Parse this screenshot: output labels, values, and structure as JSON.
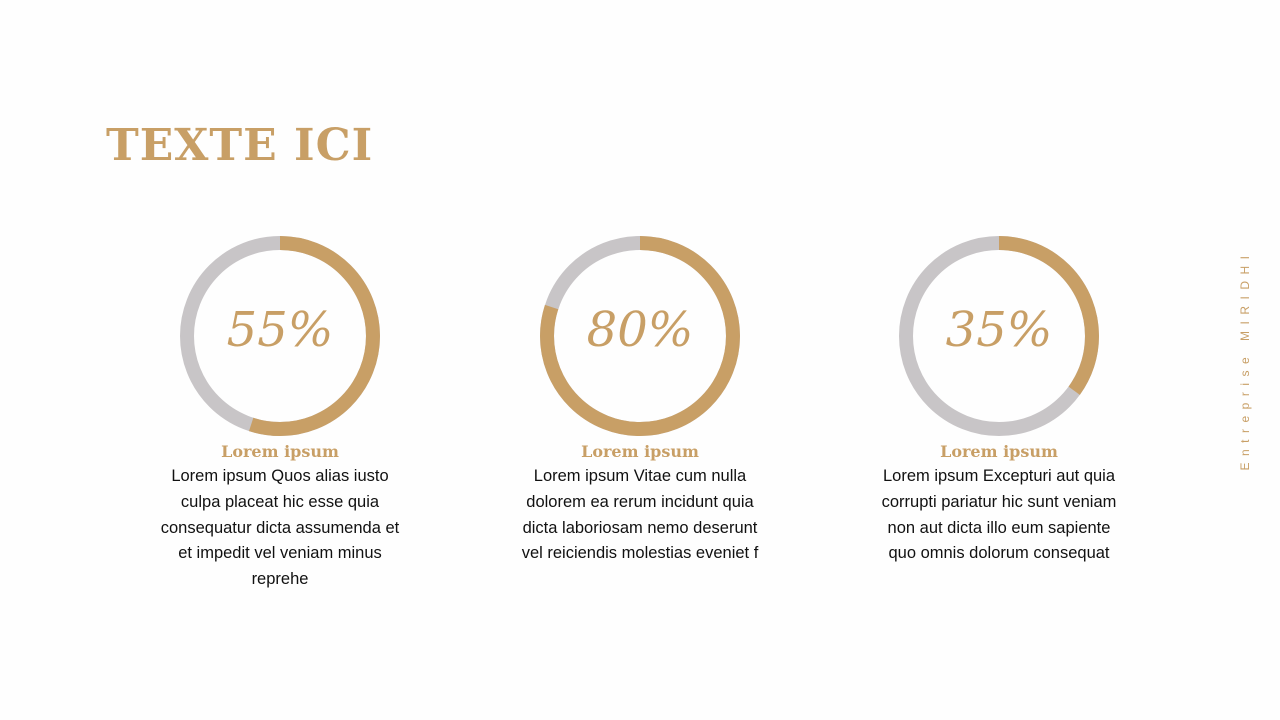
{
  "title": "TEXTE ICI",
  "side_text": "Entreprise MIRIDHI",
  "colors": {
    "accent": "#c89f66",
    "track": "#c8c5c7"
  },
  "cards": [
    {
      "value": 55,
      "label": "55%",
      "heading": "Lorem ipsum",
      "text": "Lorem ipsum Quos alias iusto culpa placeat hic esse quia consequatur dicta assumenda et et impedit vel veniam minus reprehe"
    },
    {
      "value": 80,
      "label": "80%",
      "heading": "Lorem ipsum",
      "text": "Lorem ipsum Vitae cum nulla dolorem ea rerum incidunt quia dicta laboriosam nemo deserunt vel reiciendis molestias eveniet f"
    },
    {
      "value": 35,
      "label": "35%",
      "heading": "Lorem ipsum",
      "text": "Lorem ipsum Excepturi aut quia corrupti pariatur hic sunt veniam non aut dicta illo eum sapiente quo omnis dolorum consequat"
    }
  ]
}
